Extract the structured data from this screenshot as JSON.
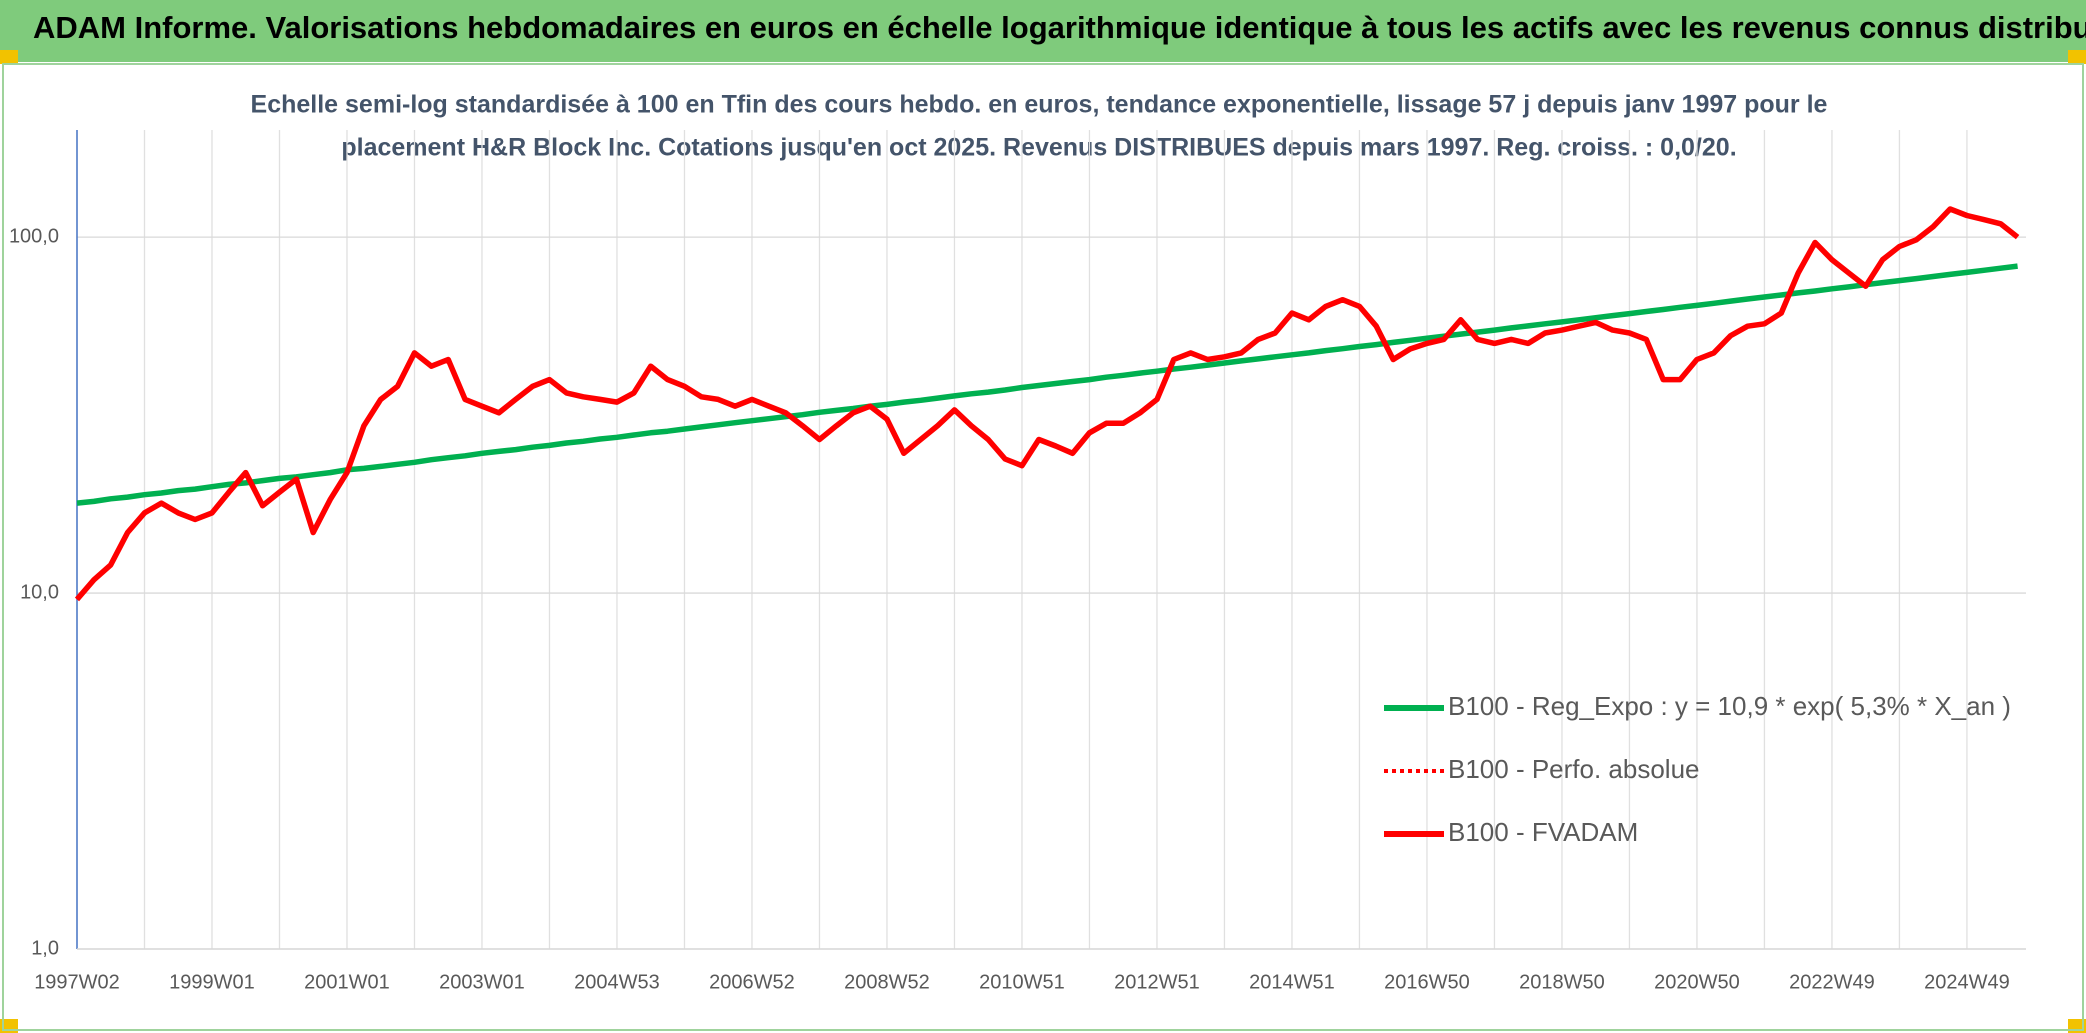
{
  "header": {
    "title": "ADAM Informe. Valorisations hebdomadaires en euros en échelle logarithmique identique à tous les actifs avec les revenus connus distribués"
  },
  "chart_data": {
    "type": "line",
    "subtitle": [
      "Echelle semi-log standardisée à 100 en Tfin des cours hebdo. en euros, tendance exponentielle, lissage 57 j depuis janv 1997 pour le",
      "placement H&R Block Inc. Cotations jusqu'en oct 2025. Revenus DISTRIBUES depuis mars 1997. Reg. croiss. : 0,0/20."
    ],
    "log_scale": true,
    "grid": true,
    "legend": "lower right",
    "ylim": [
      1,
      200
    ],
    "yticks": [
      {
        "value": 1,
        "label": "1,0"
      },
      {
        "value": 10,
        "label": "10,0"
      },
      {
        "value": 100,
        "label": "100,0"
      }
    ],
    "categories": [
      "1997W02",
      null,
      null,
      null,
      null,
      null,
      null,
      null,
      "1999W01",
      null,
      null,
      null,
      null,
      null,
      null,
      null,
      "2001W01",
      null,
      null,
      null,
      null,
      null,
      null,
      null,
      "2003W01",
      null,
      null,
      null,
      null,
      null,
      null,
      null,
      "2004W53",
      null,
      null,
      null,
      null,
      null,
      null,
      null,
      "2006W52",
      null,
      null,
      null,
      null,
      null,
      null,
      null,
      "2008W52",
      null,
      null,
      null,
      null,
      null,
      null,
      null,
      "2010W51",
      null,
      null,
      null,
      null,
      null,
      null,
      null,
      "2012W51",
      null,
      null,
      null,
      null,
      null,
      null,
      null,
      "2014W51",
      null,
      null,
      null,
      null,
      null,
      null,
      null,
      "2016W50",
      null,
      null,
      null,
      null,
      null,
      null,
      null,
      "2018W50",
      null,
      null,
      null,
      null,
      null,
      null,
      null,
      "2020W50",
      null,
      null,
      null,
      null,
      null,
      null,
      null,
      "2022W49",
      null,
      null,
      null,
      null,
      null,
      null,
      null,
      "2024W49",
      null,
      null,
      null
    ],
    "series": [
      {
        "name": "B100 - Reg_Expo : y = 10,9 * exp( 5,3% *  X_an )",
        "color": "#00b050",
        "style": "solid",
        "values": [
          17.9,
          18.1,
          18.4,
          18.6,
          18.9,
          19.1,
          19.4,
          19.6,
          19.9,
          20.2,
          20.4,
          20.7,
          21.0,
          21.2,
          21.5,
          21.8,
          22.2,
          22.4,
          22.7,
          23.0,
          23.3,
          23.7,
          24.0,
          24.3,
          24.7,
          25.0,
          25.3,
          25.7,
          26.0,
          26.4,
          26.7,
          27.1,
          27.4,
          27.8,
          28.2,
          28.5,
          28.9,
          29.3,
          29.7,
          30.1,
          30.5,
          30.9,
          31.3,
          31.7,
          32.2,
          32.6,
          33.0,
          33.5,
          33.9,
          34.4,
          34.8,
          35.3,
          35.8,
          36.3,
          36.7,
          37.2,
          37.8,
          38.3,
          38.8,
          39.3,
          39.8,
          40.4,
          40.9,
          41.5,
          42.0,
          42.6,
          43.1,
          43.7,
          44.3,
          44.9,
          45.5,
          46.1,
          46.7,
          47.3,
          48.0,
          48.6,
          49.3,
          49.9,
          50.6,
          51.3,
          52.0,
          52.7,
          53.4,
          54.1,
          54.8,
          55.6,
          56.3,
          57.1,
          57.8,
          58.6,
          59.4,
          60.2,
          61.0,
          61.8,
          62.6,
          63.5,
          64.3,
          65.2,
          66.1,
          67.0,
          67.9,
          68.8,
          69.7,
          70.6,
          71.6,
          72.5,
          73.5,
          74.5,
          75.5,
          76.5,
          77.5,
          78.6,
          79.6,
          80.7,
          81.8,
          82.9
        ]
      },
      {
        "name": "B100 - Perfo. absolue",
        "color": "#ff0000",
        "style": "dotted",
        "values": [
          9.6,
          10.9,
          12.0,
          14.8,
          16.8,
          17.9,
          16.8,
          16.1,
          16.8,
          19.2,
          21.8,
          17.6,
          19.2,
          20.9,
          14.8,
          18.3,
          21.8,
          29.5,
          35.0,
          38.1,
          47.3,
          43.4,
          45.3,
          35.0,
          33.5,
          32.1,
          35.0,
          38.1,
          39.8,
          36.5,
          35.6,
          35.0,
          34.4,
          36.5,
          43.4,
          39.8,
          38.1,
          35.6,
          35.0,
          33.5,
          35.0,
          33.5,
          32.1,
          29.5,
          27.0,
          29.5,
          32.1,
          33.5,
          30.8,
          24.7,
          27.0,
          29.5,
          32.7,
          29.5,
          27.0,
          23.8,
          22.8,
          27.0,
          25.9,
          24.7,
          28.2,
          30.0,
          30.0,
          32.1,
          35.0,
          45.3,
          47.3,
          45.3,
          46.1,
          47.3,
          51.6,
          53.8,
          61.2,
          58.6,
          63.9,
          66.7,
          63.9,
          56.2,
          45.3,
          48.5,
          50.3,
          51.6,
          58.6,
          51.6,
          50.3,
          51.6,
          50.3,
          53.8,
          54.8,
          56.2,
          57.6,
          54.8,
          53.8,
          51.6,
          39.8,
          39.8,
          45.3,
          47.3,
          52.9,
          56.2,
          57.1,
          61.2,
          79.3,
          96.6,
          86.4,
          79.3,
          72.8,
          86.4,
          94.1,
          98.3,
          107,
          120,
          115,
          112,
          109,
          100
        ]
      },
      {
        "name": "B100 - FVADAM",
        "color": "#ff0000",
        "style": "solid",
        "values": [
          9.6,
          10.9,
          12.0,
          14.8,
          16.8,
          17.9,
          16.8,
          16.1,
          16.8,
          19.2,
          21.8,
          17.6,
          19.2,
          20.9,
          14.8,
          18.3,
          21.8,
          29.5,
          35.0,
          38.1,
          47.3,
          43.4,
          45.3,
          35.0,
          33.5,
          32.1,
          35.0,
          38.1,
          39.8,
          36.5,
          35.6,
          35.0,
          34.4,
          36.5,
          43.4,
          39.8,
          38.1,
          35.6,
          35.0,
          33.5,
          35.0,
          33.5,
          32.1,
          29.5,
          27.0,
          29.5,
          32.1,
          33.5,
          30.8,
          24.7,
          27.0,
          29.5,
          32.7,
          29.5,
          27.0,
          23.8,
          22.8,
          27.0,
          25.9,
          24.7,
          28.2,
          30.0,
          30.0,
          32.1,
          35.0,
          45.3,
          47.3,
          45.3,
          46.1,
          47.3,
          51.6,
          53.8,
          61.2,
          58.6,
          63.9,
          66.7,
          63.9,
          56.2,
          45.3,
          48.5,
          50.3,
          51.6,
          58.6,
          51.6,
          50.3,
          51.6,
          50.3,
          53.8,
          54.8,
          56.2,
          57.6,
          54.8,
          53.8,
          51.6,
          39.8,
          39.8,
          45.3,
          47.3,
          52.9,
          56.2,
          57.1,
          61.2,
          79.3,
          96.6,
          86.4,
          79.3,
          72.8,
          86.4,
          94.1,
          98.3,
          107,
          120,
          115,
          112,
          109,
          100
        ]
      }
    ]
  }
}
